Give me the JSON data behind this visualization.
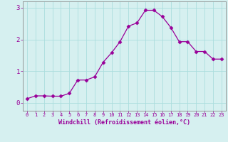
{
  "x": [
    0,
    1,
    2,
    3,
    4,
    5,
    6,
    7,
    8,
    9,
    10,
    11,
    12,
    13,
    14,
    15,
    16,
    17,
    18,
    19,
    20,
    21,
    22,
    23
  ],
  "y": [
    0.13,
    0.22,
    0.22,
    0.21,
    0.21,
    0.3,
    0.72,
    0.72,
    0.82,
    1.28,
    1.58,
    1.93,
    2.42,
    2.52,
    2.92,
    2.92,
    2.72,
    2.38,
    1.93,
    1.93,
    1.62,
    1.62,
    1.38,
    1.38
  ],
  "line_color": "#990099",
  "marker": "D",
  "marker_size": 2.5,
  "bg_color": "#d6f0f0",
  "grid_color": "#aadddd",
  "xlabel": "Windchill (Refroidissement éolien,°C)",
  "xlabel_color": "#990099",
  "tick_color": "#990099",
  "spine_color": "#888888",
  "ylim": [
    -0.25,
    3.2
  ],
  "xlim": [
    -0.5,
    23.5
  ],
  "yticks": [
    0,
    1,
    2,
    3
  ],
  "xticks": [
    0,
    1,
    2,
    3,
    4,
    5,
    6,
    7,
    8,
    9,
    10,
    11,
    12,
    13,
    14,
    15,
    16,
    17,
    18,
    19,
    20,
    21,
    22,
    23
  ],
  "xtick_labels": [
    "0",
    "1",
    "2",
    "3",
    "4",
    "5",
    "6",
    "7",
    "8",
    "9",
    "10",
    "11",
    "12",
    "13",
    "14",
    "15",
    "16",
    "17",
    "18",
    "19",
    "20",
    "21",
    "22",
    "23"
  ]
}
